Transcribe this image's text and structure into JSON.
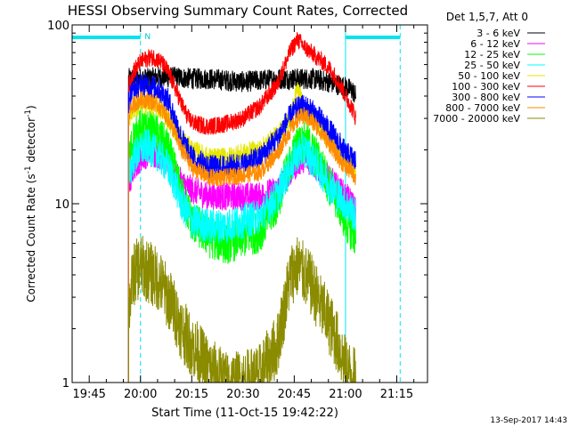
{
  "chart_data": {
    "type": "line",
    "title": "HESSI Observing Summary Count Rates, Corrected",
    "xlabel": "Start Time (11-Oct-15 19:42:22)",
    "ylabel_main": "Corrected Count Rate (s",
    "ylabel_sup1": "-1",
    "ylabel_mid": " detector",
    "ylabel_sup2": "-1",
    "ylabel_end": ")",
    "y_scale": "log",
    "ylim": [
      1,
      100
    ],
    "xlim_minutes": [
      -20,
      84
    ],
    "x_ticks": [
      {
        "m": -15,
        "label": "19:45"
      },
      {
        "m": 0,
        "label": "20:00"
      },
      {
        "m": 15,
        "label": "20:15"
      },
      {
        "m": 30,
        "label": "20:30"
      },
      {
        "m": 45,
        "label": "20:45"
      },
      {
        "m": 60,
        "label": "21:00"
      },
      {
        "m": 75,
        "label": "21:15"
      }
    ],
    "x_minor_step": 5,
    "y_ticks": [
      {
        "v": 1,
        "label": "1"
      },
      {
        "v": 10,
        "label": "10"
      },
      {
        "v": 100,
        "label": "100"
      }
    ],
    "legend_header": "Det 1,5,7, Att 0",
    "series": [
      {
        "name": "3 - 6 keV",
        "color": "#000000",
        "x": [
          -3.5,
          -2,
          0,
          2,
          5,
          10,
          15,
          20,
          25,
          30,
          35,
          40,
          45,
          50,
          55,
          60,
          62,
          63
        ],
        "y": [
          50,
          50,
          50,
          50,
          51,
          51,
          50,
          50,
          49,
          48,
          49,
          50,
          50,
          50,
          48,
          45,
          43,
          40
        ],
        "noise": 0.06
      },
      {
        "name": "6 - 12 keV",
        "color": "#ff00ff",
        "x": [
          -3.5,
          -2,
          0,
          2,
          5,
          8,
          10,
          12,
          15,
          20,
          25,
          30,
          35,
          40,
          44,
          46,
          48,
          50,
          53,
          55,
          58,
          60,
          62,
          63
        ],
        "y": [
          12,
          16,
          18,
          19,
          19,
          17,
          15,
          13,
          12,
          11,
          11,
          11,
          11,
          12,
          15,
          17,
          18,
          17,
          15,
          14,
          12,
          11,
          10,
          9
        ],
        "noise": 0.08
      },
      {
        "name": "12 - 25 keV",
        "color": "#00ff00",
        "x": [
          -3.5,
          -2,
          0,
          2,
          5,
          8,
          10,
          12,
          15,
          20,
          25,
          30,
          35,
          40,
          44,
          46,
          48,
          50,
          53,
          55,
          58,
          60,
          62,
          63
        ],
        "y": [
          17,
          23,
          26,
          26,
          24,
          20,
          15,
          11,
          8,
          6.5,
          6,
          6.5,
          7,
          10,
          17,
          21,
          22,
          20,
          16,
          13,
          10,
          8,
          7,
          6.5
        ],
        "noise": 0.12
      },
      {
        "name": "25 - 50 keV",
        "color": "#00ffff",
        "x": [
          -3.5,
          -2,
          0,
          2,
          5,
          8,
          10,
          12,
          15,
          20,
          25,
          30,
          35,
          40,
          44,
          46,
          48,
          50,
          53,
          55,
          58,
          60,
          62,
          63
        ],
        "y": [
          14,
          18,
          20,
          21,
          19,
          16,
          13,
          10,
          8,
          7.5,
          7.5,
          8,
          8.5,
          11,
          16,
          19,
          20,
          18,
          15,
          13,
          11,
          10,
          9,
          8.5
        ],
        "noise": 0.1
      },
      {
        "name": "50 - 100 keV",
        "color": "#e6e600",
        "x": [
          -3.5,
          -2,
          0,
          2,
          5,
          8,
          10,
          12,
          15,
          20,
          25,
          30,
          35,
          40,
          42,
          44,
          46,
          48,
          50,
          53,
          55,
          58,
          60,
          62,
          63
        ],
        "y": [
          30,
          34,
          36,
          36,
          35,
          30,
          26,
          23,
          20,
          18,
          18,
          19,
          20,
          24,
          27,
          30,
          44,
          32,
          30,
          26,
          23,
          20,
          18,
          17,
          16
        ],
        "noise": 0.06
      },
      {
        "name": "100 - 300 keV",
        "color": "#ff0000",
        "x": [
          -3.5,
          -2,
          0,
          2,
          4,
          6,
          8,
          10,
          12,
          14,
          16,
          20,
          25,
          30,
          35,
          40,
          42,
          44,
          46,
          48,
          50,
          52,
          55,
          58,
          60,
          62,
          63
        ],
        "y": [
          45,
          55,
          62,
          65,
          66,
          62,
          55,
          45,
          36,
          30,
          28,
          27,
          28,
          30,
          35,
          46,
          58,
          72,
          83,
          75,
          70,
          65,
          58,
          48,
          40,
          34,
          30
        ],
        "noise": 0.05
      },
      {
        "name": "300 - 800 keV",
        "color": "#0000ff",
        "x": [
          -3.5,
          -2,
          0,
          2,
          5,
          8,
          10,
          12,
          15,
          20,
          25,
          30,
          35,
          40,
          44,
          46,
          48,
          50,
          53,
          55,
          58,
          60,
          62,
          63
        ],
        "y": [
          38,
          44,
          46,
          46,
          44,
          38,
          30,
          23,
          18,
          16,
          16,
          16.5,
          18,
          23,
          31,
          34,
          35,
          33,
          29,
          26,
          22,
          19,
          18,
          17
        ],
        "noise": 0.07
      },
      {
        "name": "800 - 7000 keV",
        "color": "#ff8c00",
        "x": [
          -3.5,
          -2,
          0,
          2,
          5,
          8,
          10,
          12,
          15,
          20,
          25,
          30,
          35,
          40,
          44,
          46,
          48,
          50,
          53,
          55,
          58,
          60,
          62,
          63
        ],
        "y": [
          32,
          36,
          38,
          38,
          36,
          30,
          25,
          20,
          16,
          14,
          14,
          14.5,
          15,
          19,
          26,
          30,
          31,
          29,
          25,
          22,
          18,
          16,
          15,
          14
        ],
        "noise": 0.05
      },
      {
        "name": "7000 - 20000 keV",
        "color": "#8b8b00",
        "x": [
          -3.5,
          -2,
          0,
          2,
          5,
          8,
          10,
          12,
          15,
          20,
          25,
          30,
          35,
          40,
          42,
          44,
          46,
          48,
          50,
          53,
          55,
          58,
          60,
          62,
          63
        ],
        "y": [
          2.5,
          4,
          4.5,
          4.2,
          3.8,
          3,
          2.5,
          2,
          1.6,
          1.2,
          1,
          1,
          1.1,
          1.6,
          2.5,
          4,
          4.5,
          4,
          3.5,
          2.6,
          2.2,
          1.6,
          1.2,
          1.1,
          1
        ],
        "noise": 0.18
      }
    ],
    "annotations": {
      "n_marker": "N",
      "timestamp": "13-Sep-2017 14:43",
      "night_bars_minutes": [
        [
          -20,
          0
        ],
        [
          60,
          76
        ]
      ],
      "dashed_lines_minutes": [
        0,
        76
      ],
      "solid_lines_minutes": [
        -20,
        60
      ]
    },
    "legend_placement": "outside-right",
    "grid": false
  }
}
